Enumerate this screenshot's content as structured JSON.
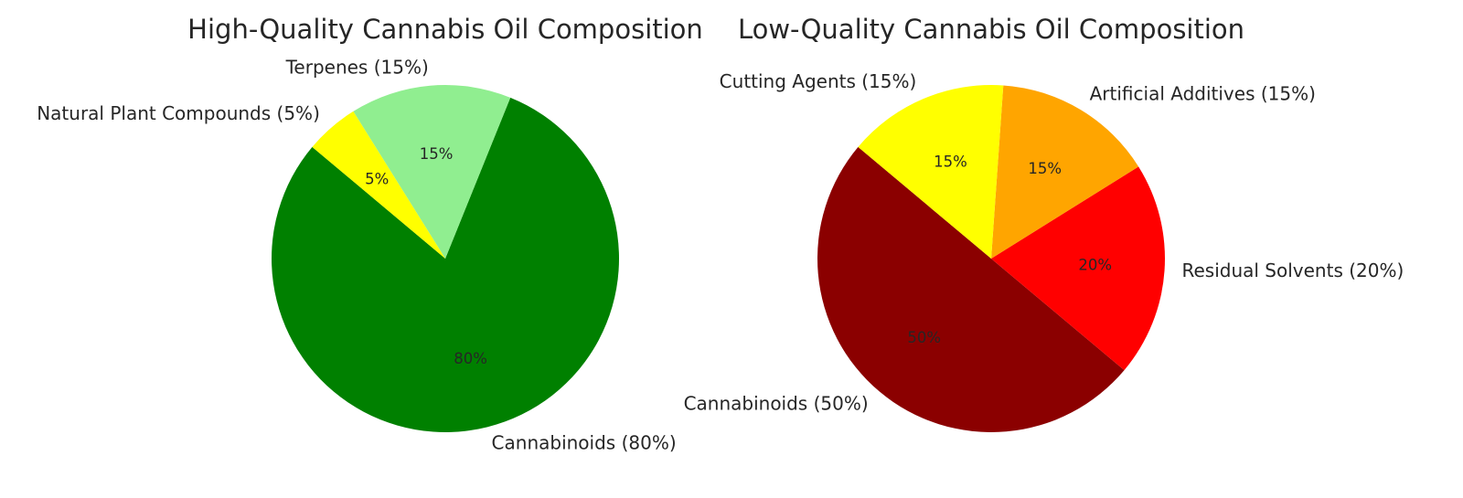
{
  "chart_data": [
    {
      "type": "pie",
      "title": "High-Quality Cannabis Oil Composition",
      "start_angle_deg": 140,
      "slices": [
        {
          "label": "Cannabinoids (80%)",
          "value": 80,
          "pct_label": "80%",
          "color": "#008000"
        },
        {
          "label": "Terpenes (15%)",
          "value": 15,
          "pct_label": "15%",
          "color": "#90EE90"
        },
        {
          "label": "Natural Plant Compounds (5%)",
          "value": 5,
          "pct_label": "5%",
          "color": "#FFFF00"
        }
      ]
    },
    {
      "type": "pie",
      "title": "Low-Quality Cannabis Oil Composition",
      "start_angle_deg": 140,
      "slices": [
        {
          "label": "Cannabinoids (50%)",
          "value": 50,
          "pct_label": "50%",
          "color": "#8B0000"
        },
        {
          "label": "Residual Solvents (20%)",
          "value": 20,
          "pct_label": "20%",
          "color": "#FF0000"
        },
        {
          "label": "Artificial Additives (15%)",
          "value": 15,
          "pct_label": "15%",
          "color": "#FFA500"
        },
        {
          "label": "Cutting Agents (15%)",
          "value": 15,
          "pct_label": "15%",
          "color": "#FFFF00"
        }
      ]
    }
  ]
}
